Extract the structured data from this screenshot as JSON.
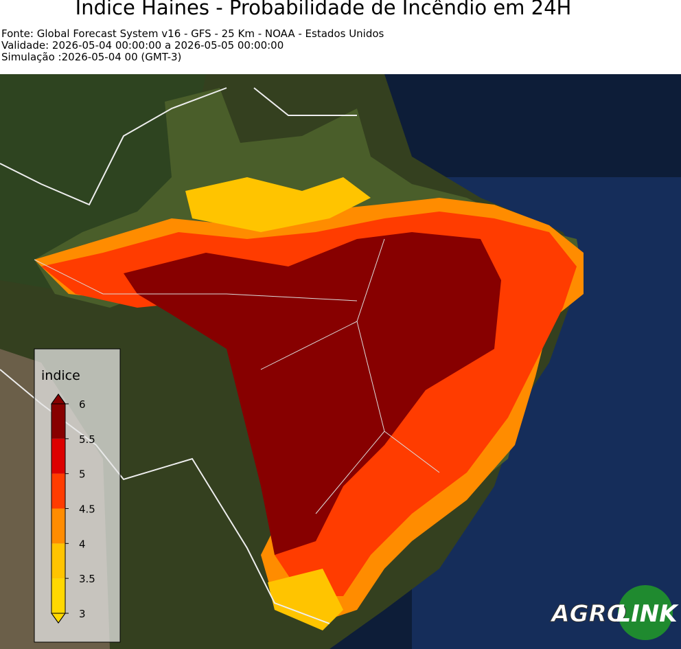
{
  "header": {
    "title": "Indice Haines - Probabilidade de Incêndio em 24H",
    "lines": [
      "Fonte: Global Forecast System v16 - GFS - 25 Km - NOAA - Estados Unidos",
      "Validade: 2026-05-04 00:00:00 a 2026-05-05 00:00:00",
      "Simulação :2026-05-04 00 (GMT-3)"
    ]
  },
  "colorbar": {
    "title": "indice",
    "lim": [
      3,
      6
    ],
    "ticks": [
      3,
      3.5,
      4,
      4.5,
      5,
      5.5,
      6
    ],
    "band_colors": [
      "#ffd800",
      "#ffc400",
      "#ff8c00",
      "#ff3c00",
      "#dc0000",
      "#870000"
    ]
  },
  "logo": {
    "left": "AGRO",
    "right": "LINK"
  }
}
